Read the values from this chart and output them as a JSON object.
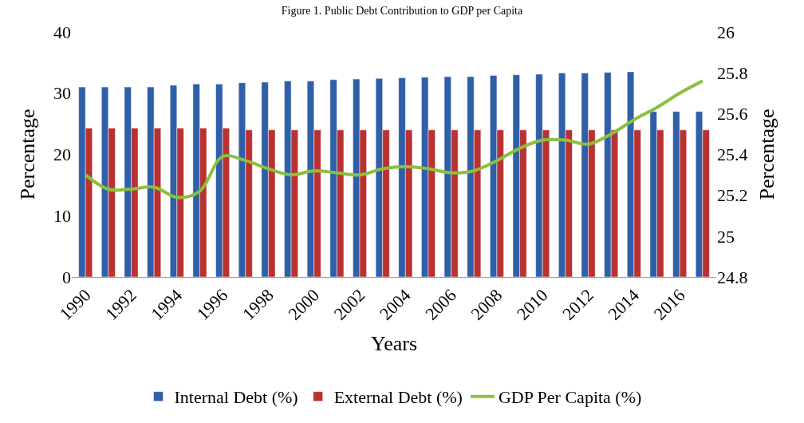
{
  "chart_data": {
    "type": "bar",
    "title": "Figure 1. Public Debt Contribution to GDP per Capita",
    "xlabel": "Years",
    "ylabel": "Percentage",
    "y2label": "Percentage",
    "categories": [
      "1990",
      null,
      "1992",
      null,
      "1994",
      null,
      "1996",
      null,
      "1998",
      null,
      "2000",
      null,
      "2002",
      null,
      "2004",
      null,
      "2006",
      null,
      "2008",
      null,
      "2010",
      null,
      "2012",
      null,
      "2014",
      null,
      "2016",
      null
    ],
    "series": [
      {
        "name": "Internal Debt (%)",
        "color": "#2f5fa8",
        "values": [
          31.0,
          31.0,
          31.0,
          31.0,
          31.3,
          31.5,
          31.5,
          31.7,
          31.8,
          32.0,
          32.0,
          32.2,
          32.3,
          32.4,
          32.5,
          32.6,
          32.7,
          32.7,
          32.9,
          33.0,
          33.1,
          33.3,
          33.3,
          33.4,
          33.5,
          27.0,
          27.0,
          27.0
        ]
      },
      {
        "name": "External Debt (%)",
        "color": "#b83232",
        "values": [
          24.3,
          24.3,
          24.3,
          24.3,
          24.3,
          24.3,
          24.3,
          24.0,
          24.0,
          24.0,
          24.0,
          24.0,
          24.0,
          24.0,
          24.0,
          24.0,
          24.0,
          24.0,
          24.0,
          24.0,
          24.0,
          24.0,
          24.0,
          24.0,
          24.0,
          24.0,
          24.0,
          24.0
        ]
      },
      {
        "name": "GDP Per Capita (%)",
        "type": "line",
        "axis": "y2",
        "color": "#8cbf3f",
        "values": [
          25.3,
          25.23,
          25.23,
          25.24,
          25.19,
          25.22,
          25.39,
          25.37,
          25.33,
          25.3,
          25.32,
          25.31,
          25.3,
          25.33,
          25.34,
          25.33,
          25.31,
          25.32,
          25.37,
          25.43,
          25.47,
          25.47,
          25.45,
          25.5,
          25.57,
          25.63,
          25.7,
          25.76
        ]
      }
    ],
    "ylim": [
      0,
      40
    ],
    "yticks": [
      0,
      10,
      20,
      30,
      40
    ],
    "y2lim": [
      24.8,
      26
    ],
    "y2ticks": [
      24.8,
      25,
      25.2,
      25.4,
      25.6,
      25.8,
      26
    ],
    "legend": "bottom",
    "grid": false
  }
}
